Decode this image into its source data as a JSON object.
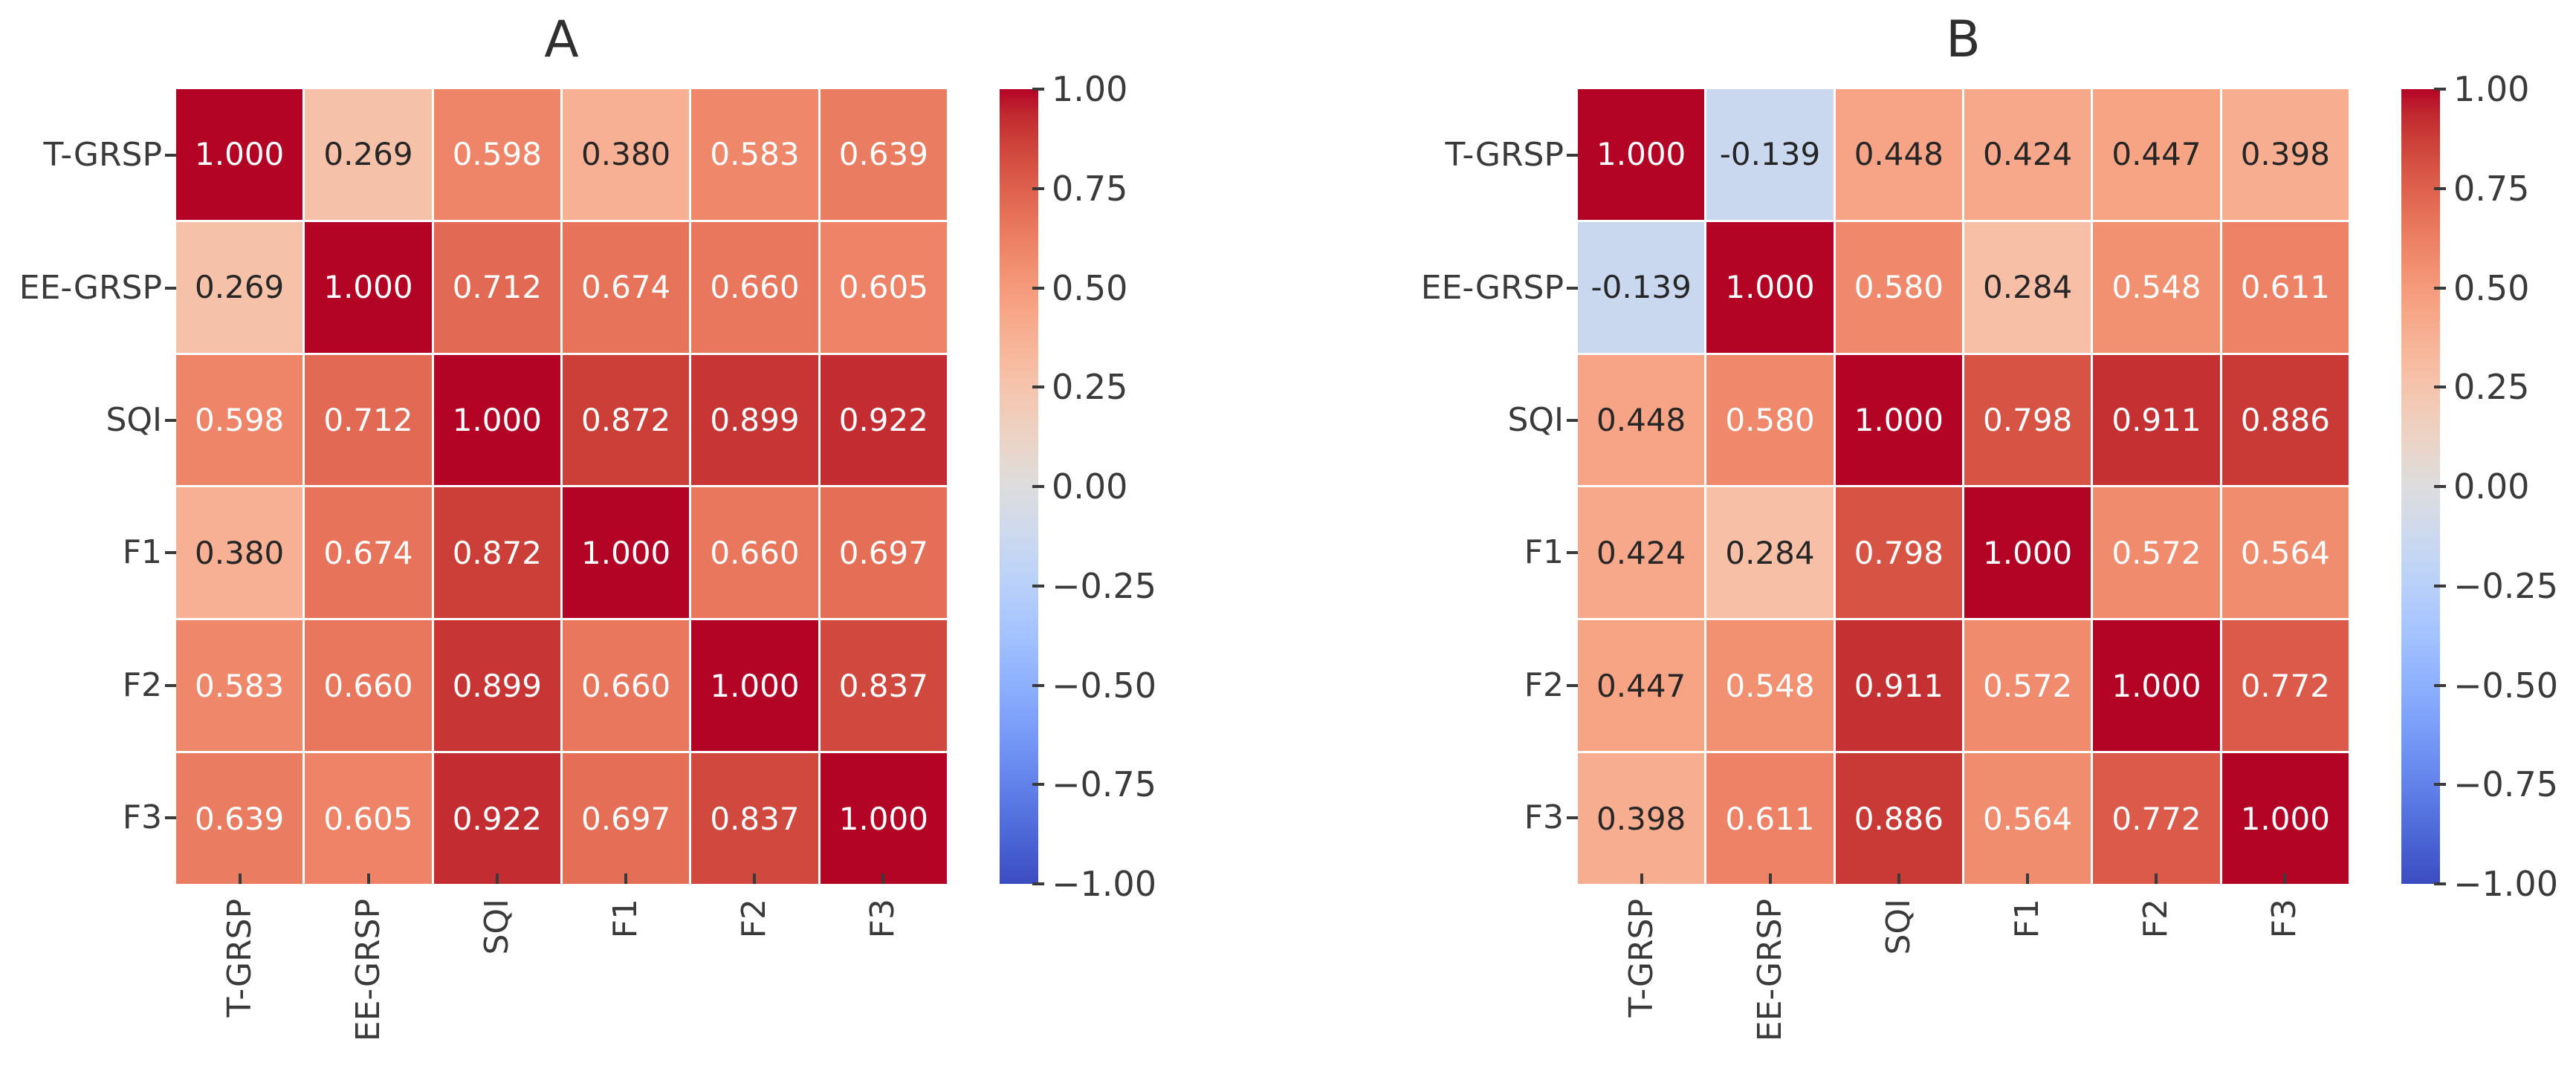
{
  "figure": {
    "background": "#ffffff",
    "grid_line_color": "#ffffff",
    "text_color": "#3a3a3a",
    "annotation_text_dark": "#262626",
    "annotation_text_light": "#ffffff"
  },
  "chart_data": [
    {
      "type": "heatmap",
      "title": "A",
      "x_labels": [
        "T-GRSP",
        "EE-GRSP",
        "SQI",
        "F1",
        "F2",
        "F3"
      ],
      "y_labels": [
        "T-GRSP",
        "EE-GRSP",
        "SQI",
        "F1",
        "F2",
        "F3"
      ],
      "matrix": [
        [
          1.0,
          0.269,
          0.598,
          0.38,
          0.583,
          0.639
        ],
        [
          0.269,
          1.0,
          0.712,
          0.674,
          0.66,
          0.605
        ],
        [
          0.598,
          0.712,
          1.0,
          0.872,
          0.899,
          0.922
        ],
        [
          0.38,
          0.674,
          0.872,
          1.0,
          0.66,
          0.697
        ],
        [
          0.583,
          0.66,
          0.899,
          0.66,
          1.0,
          0.837
        ],
        [
          0.639,
          0.605,
          0.922,
          0.697,
          0.837,
          1.0
        ]
      ],
      "vmin": -1,
      "vmax": 1,
      "colormap": "coolwarm",
      "annotation_format": ".3f",
      "colorbar_tick_labels": [
        "1.00",
        "0.75",
        "0.50",
        "0.25",
        "0.00",
        "−0.25",
        "−0.50",
        "−0.75",
        "−1.00"
      ],
      "colormap_anchors": {
        "min": "#3b4cc0",
        "mid": "#dddddd",
        "max": "#b40426"
      }
    },
    {
      "type": "heatmap",
      "title": "B",
      "x_labels": [
        "T-GRSP",
        "EE-GRSP",
        "SQI",
        "F1",
        "F2",
        "F3"
      ],
      "y_labels": [
        "T-GRSP",
        "EE-GRSP",
        "SQI",
        "F1",
        "F2",
        "F3"
      ],
      "matrix": [
        [
          1.0,
          -0.139,
          0.448,
          0.424,
          0.447,
          0.398
        ],
        [
          -0.139,
          1.0,
          0.58,
          0.284,
          0.548,
          0.611
        ],
        [
          0.448,
          0.58,
          1.0,
          0.798,
          0.911,
          0.886
        ],
        [
          0.424,
          0.284,
          0.798,
          1.0,
          0.572,
          0.564
        ],
        [
          0.447,
          0.548,
          0.911,
          0.572,
          1.0,
          0.772
        ],
        [
          0.398,
          0.611,
          0.886,
          0.564,
          0.772,
          1.0
        ]
      ],
      "vmin": -1,
      "vmax": 1,
      "colormap": "coolwarm",
      "annotation_format": ".3f",
      "colorbar_tick_labels": [
        "1.00",
        "0.75",
        "0.50",
        "0.25",
        "0.00",
        "−0.25",
        "−0.50",
        "−0.75",
        "−1.00"
      ],
      "colormap_anchors": {
        "min": "#3b4cc0",
        "mid": "#dddddd",
        "max": "#b40426"
      }
    }
  ]
}
